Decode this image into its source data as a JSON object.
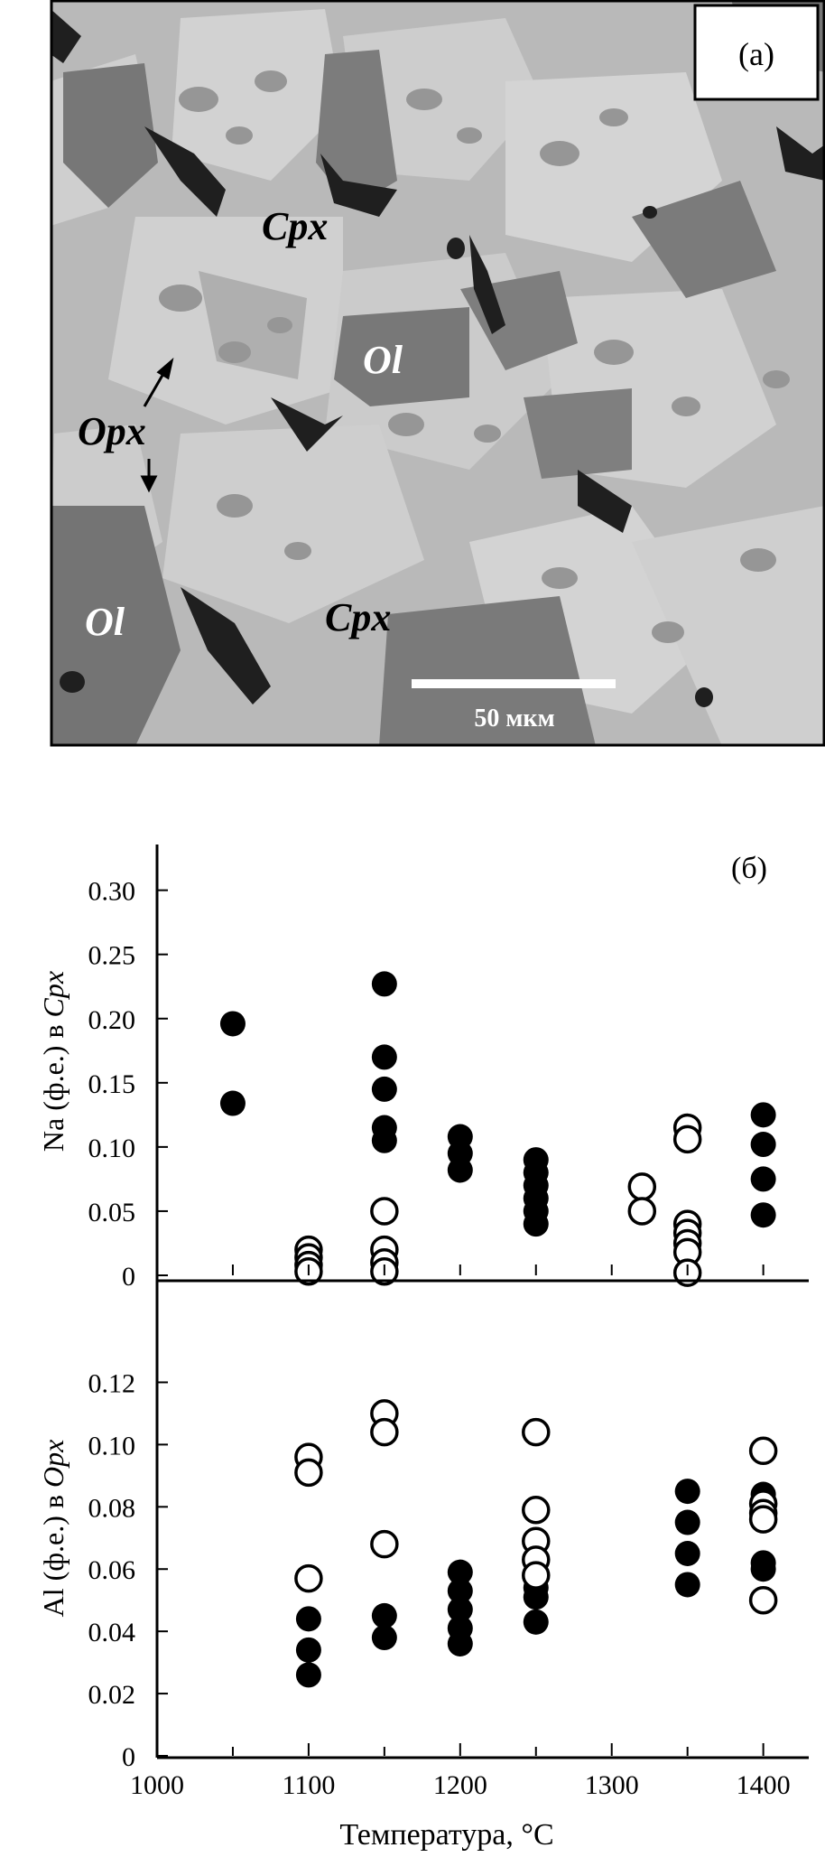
{
  "micrograph": {
    "panel_label": "(а)",
    "scale_bar_label": "50 мкм",
    "labels": [
      {
        "key": "cpx1",
        "text": "Cpx"
      },
      {
        "key": "ol1",
        "text": "Ol"
      },
      {
        "key": "opx",
        "text": "Opx"
      },
      {
        "key": "ol2",
        "text": "Ol"
      },
      {
        "key": "cpx2",
        "text": "Cpx"
      }
    ]
  },
  "chart_data": [
    {
      "type": "scatter",
      "panel_label": "(б)",
      "ylabel_prefix": "Na (ф.е.) в ",
      "ylabel_italic": "Cpx",
      "ylim": [
        0,
        0.33
      ],
      "yticks": [
        0,
        0.05,
        0.1,
        0.15,
        0.2,
        0.25,
        0.3
      ],
      "ytick_labels": [
        "0",
        "0.05",
        "0.10",
        "0.15",
        "0.20",
        "0.25",
        "0.30"
      ],
      "series": [
        {
          "marker": "filled",
          "points": [
            [
              1050,
              0.196
            ],
            [
              1050,
              0.134
            ],
            [
              1150,
              0.227
            ],
            [
              1150,
              0.17
            ],
            [
              1150,
              0.145
            ],
            [
              1150,
              0.115
            ],
            [
              1150,
              0.105
            ],
            [
              1200,
              0.108
            ],
            [
              1200,
              0.095
            ],
            [
              1200,
              0.082
            ],
            [
              1250,
              0.09
            ],
            [
              1250,
              0.08
            ],
            [
              1250,
              0.07
            ],
            [
              1250,
              0.06
            ],
            [
              1250,
              0.05
            ],
            [
              1250,
              0.04
            ],
            [
              1400,
              0.125
            ],
            [
              1400,
              0.102
            ],
            [
              1400,
              0.075
            ],
            [
              1400,
              0.047
            ]
          ]
        },
        {
          "marker": "open",
          "points": [
            [
              1100,
              0.02
            ],
            [
              1100,
              0.014
            ],
            [
              1100,
              0.008
            ],
            [
              1100,
              0.003
            ],
            [
              1150,
              0.05
            ],
            [
              1150,
              0.02
            ],
            [
              1150,
              0.01
            ],
            [
              1150,
              0.003
            ],
            [
              1320,
              0.069
            ],
            [
              1320,
              0.05
            ],
            [
              1350,
              0.115
            ],
            [
              1350,
              0.106
            ],
            [
              1350,
              0.04
            ],
            [
              1350,
              0.033
            ],
            [
              1350,
              0.025
            ],
            [
              1350,
              0.018
            ],
            [
              1350,
              0.002
            ]
          ]
        }
      ]
    },
    {
      "type": "scatter",
      "ylabel_prefix": "Al (ф.е.) в ",
      "ylabel_italic": "Opx",
      "xlabel": "Температура, °C",
      "xlim": [
        1000,
        1430
      ],
      "xticks": [
        1000,
        1100,
        1200,
        1300,
        1400
      ],
      "xtick_labels": [
        "1000",
        "1100",
        "1200",
        "1300",
        "1400"
      ],
      "ylim": [
        0,
        0.13
      ],
      "yticks": [
        0,
        0.02,
        0.04,
        0.06,
        0.08,
        0.1,
        0.12
      ],
      "ytick_labels": [
        "0",
        "0.02",
        "0.04",
        "0.06",
        "0.08",
        "0.10",
        "0.12"
      ],
      "series": [
        {
          "marker": "filled",
          "points": [
            [
              1100,
              0.044
            ],
            [
              1100,
              0.034
            ],
            [
              1100,
              0.026
            ],
            [
              1150,
              0.045
            ],
            [
              1150,
              0.038
            ],
            [
              1200,
              0.059
            ],
            [
              1200,
              0.053
            ],
            [
              1200,
              0.047
            ],
            [
              1200,
              0.041
            ],
            [
              1200,
              0.036
            ],
            [
              1250,
              0.054
            ],
            [
              1250,
              0.051
            ],
            [
              1250,
              0.043
            ],
            [
              1350,
              0.085
            ],
            [
              1350,
              0.075
            ],
            [
              1350,
              0.065
            ],
            [
              1350,
              0.055
            ],
            [
              1400,
              0.084
            ],
            [
              1400,
              0.062
            ],
            [
              1400,
              0.06
            ]
          ]
        },
        {
          "marker": "open",
          "points": [
            [
              1100,
              0.096
            ],
            [
              1100,
              0.091
            ],
            [
              1100,
              0.057
            ],
            [
              1150,
              0.11
            ],
            [
              1150,
              0.104
            ],
            [
              1150,
              0.068
            ],
            [
              1250,
              0.104
            ],
            [
              1250,
              0.079
            ],
            [
              1250,
              0.069
            ],
            [
              1250,
              0.063
            ],
            [
              1250,
              0.058
            ],
            [
              1400,
              0.098
            ],
            [
              1400,
              0.081
            ],
            [
              1400,
              0.078
            ],
            [
              1400,
              0.076
            ],
            [
              1400,
              0.05
            ]
          ]
        }
      ]
    }
  ]
}
